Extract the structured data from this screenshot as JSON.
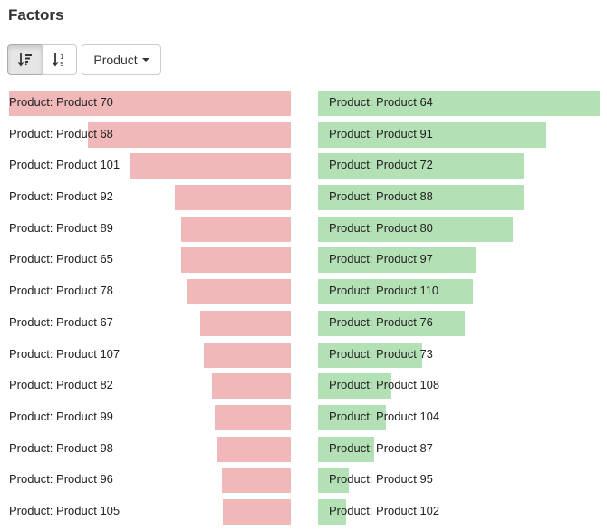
{
  "header": {
    "title": "Factors"
  },
  "toolbar": {
    "sort_desc_icon": "sort-amount-desc-icon",
    "sort_asc_icon": "sort-numeric-asc-icon",
    "dropdown_label": "Product"
  },
  "negative_factors": [
    {
      "label": "Product: Product 70",
      "value": 1.0
    },
    {
      "label": "Product: Product 68",
      "value": 0.72
    },
    {
      "label": "Product: Product 101",
      "value": 0.57
    },
    {
      "label": "Product: Product 92",
      "value": 0.41
    },
    {
      "label": "Product: Product 89",
      "value": 0.39
    },
    {
      "label": "Product: Product 65",
      "value": 0.39
    },
    {
      "label": "Product: Product 78",
      "value": 0.37
    },
    {
      "label": "Product: Product 67",
      "value": 0.32
    },
    {
      "label": "Product: Product 107",
      "value": 0.31
    },
    {
      "label": "Product: Product 82",
      "value": 0.28
    },
    {
      "label": "Product: Product 99",
      "value": 0.27
    },
    {
      "label": "Product: Product 98",
      "value": 0.26
    },
    {
      "label": "Product: Product 96",
      "value": 0.245
    },
    {
      "label": "Product: Product 105",
      "value": 0.24
    }
  ],
  "positive_factors": [
    {
      "label": "Product: Product 64",
      "value": 1.0
    },
    {
      "label": "Product: Product 91",
      "value": 0.81
    },
    {
      "label": "Product: Product 72",
      "value": 0.73
    },
    {
      "label": "Product: Product 88",
      "value": 0.73
    },
    {
      "label": "Product: Product 80",
      "value": 0.69
    },
    {
      "label": "Product: Product 97",
      "value": 0.56
    },
    {
      "label": "Product: Product 110",
      "value": 0.55
    },
    {
      "label": "Product: Product 76",
      "value": 0.52
    },
    {
      "label": "Product: Product 73",
      "value": 0.37
    },
    {
      "label": "Product: Product 108",
      "value": 0.26
    },
    {
      "label": "Product: Product 104",
      "value": 0.24
    },
    {
      "label": "Product: Product 87",
      "value": 0.2
    },
    {
      "label": "Product: Product 95",
      "value": 0.11
    },
    {
      "label": "Product: Product 102",
      "value": 0.1
    }
  ],
  "colors": {
    "negative": "#f0b8b8",
    "positive": "#b4e0b5"
  }
}
